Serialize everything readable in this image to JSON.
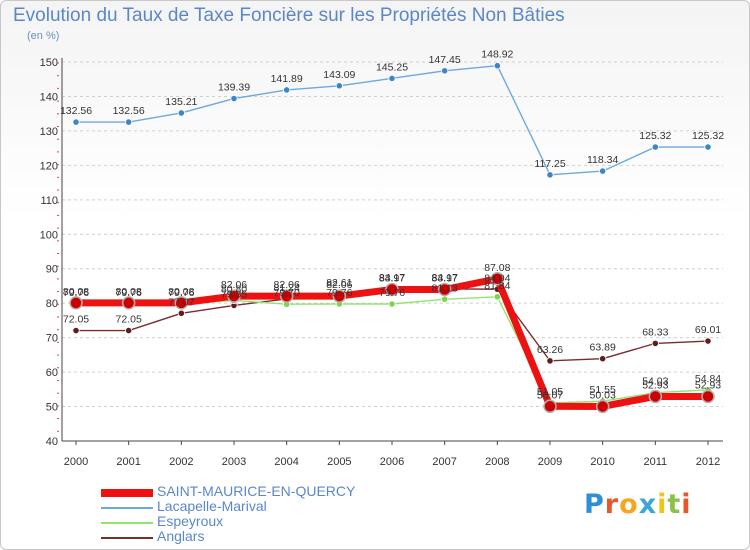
{
  "title": "Evolution du Taux de Taxe Foncière sur les Propriétés Non Bâties",
  "unit_label": "(en %)",
  "brand": {
    "text": "Proxiti",
    "letter_colors": [
      "#2e8fd8",
      "#e8562a",
      "#f6a623",
      "#3aa7d8",
      "#f0c419",
      "#8bc34a",
      "#e8562a"
    ]
  },
  "chart_data": {
    "type": "line",
    "title": "Evolution du Taux de Taxe Foncière sur les Propriétés Non Bâties",
    "ylabel": "(en %)",
    "ylim": [
      40,
      150
    ],
    "yticks": [
      40,
      50,
      60,
      70,
      80,
      90,
      100,
      110,
      120,
      130,
      140,
      150
    ],
    "grid": "horizontal dashed",
    "legend": "bottom-left",
    "categories": [
      "2000",
      "2001",
      "2002",
      "2003",
      "2004",
      "2005",
      "2006",
      "2007",
      "2008",
      "2009",
      "2010",
      "2011",
      "2012"
    ],
    "series": [
      {
        "name": "SAINT-MAURICE-EN-QUERCY",
        "color": "#ee1111",
        "marker": "#cc0000",
        "values": [
          80.08,
          80.08,
          80.08,
          82.06,
          82.06,
          82.06,
          83.97,
          83.97,
          87.08,
          50.07,
          50.03,
          52.93,
          52.93
        ],
        "labels": [
          "80.08",
          "80.08",
          "80.08",
          "82.06",
          "82.06",
          "82.06",
          "83.97",
          "83.97",
          "87.08",
          "50.07",
          "50.03",
          "52.93",
          "52.93"
        ]
      },
      {
        "name": "Lacapelle-Marival",
        "color": "#6fa8dc",
        "marker": "#3d85c6",
        "values": [
          132.56,
          132.56,
          135.21,
          139.39,
          141.89,
          143.09,
          145.25,
          147.45,
          148.92,
          117.25,
          118.34,
          125.32,
          125.32
        ],
        "labels": [
          "132.56",
          "132.56",
          "135.21",
          "139.39",
          "141.89",
          "143.09",
          "145.25",
          "147.45",
          "148.92",
          "117.25",
          "118.34",
          "125.32",
          "125.32"
        ]
      },
      {
        "name": "Espeyroux",
        "color": "#93e46e",
        "marker": "#7dd44e",
        "values": [
          79.76,
          79.76,
          79.76,
          80.8,
          79.7,
          79.76,
          79.76,
          81.13,
          81.84,
          51.05,
          51.55,
          54.03,
          54.84
        ],
        "labels": [
          "79.76",
          "79.76",
          "79.76",
          "80.80",
          "79.70",
          "79.76",
          "79.76",
          "81.13",
          "81.84",
          "51.05",
          "51.55",
          "54.03",
          "54.84"
        ]
      },
      {
        "name": "Anglars",
        "color": "#7b2d2d",
        "marker": "#5c1f1f",
        "values": [
          72.05,
          72.05,
          77.07,
          79.35,
          81.24,
          82.61,
          84.17,
          84.17,
          84.04,
          63.26,
          63.89,
          68.33,
          69.01
        ],
        "labels": [
          "72.05",
          "72.05",
          "77.07",
          "79.35",
          "81.24",
          "82.61",
          "84.17",
          "84.17",
          "84.04",
          "63.26",
          "63.89",
          "68.33",
          "69.01"
        ]
      }
    ]
  }
}
